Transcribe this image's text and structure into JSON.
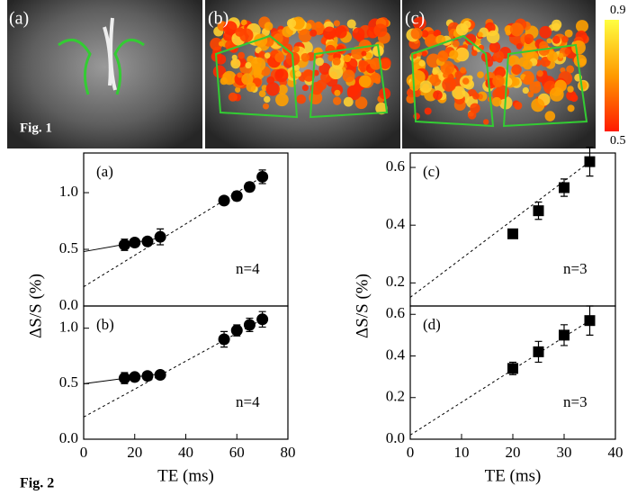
{
  "figure1": {
    "panels": [
      "(a)",
      "(b)",
      "(c)"
    ],
    "caption": "Fig. 1",
    "colorbar_labels": [
      "0.9",
      "0.5"
    ]
  },
  "figure2": {
    "caption": "Fig. 2"
  },
  "chart_data": [
    {
      "type": "scatter",
      "panel_label": "(a)",
      "annotation": "n=4",
      "y_label": "ΔS/S (%)",
      "x": [
        16,
        20,
        25,
        30,
        55,
        60,
        65,
        70
      ],
      "series": [
        {
          "color": "#000000",
          "marker": "circle",
          "values": [
            0.54,
            0.56,
            0.57,
            0.61,
            0.93,
            0.97,
            1.05,
            1.14
          ],
          "errors": [
            0.05,
            0.03,
            0.03,
            0.07,
            0.03,
            0.04,
            0.04,
            0.06
          ]
        }
      ],
      "fits": [
        {
          "style": "solid",
          "x": [
            0,
            30
          ],
          "values": [
            0.48,
            0.6
          ]
        },
        {
          "style": "dashed",
          "x": [
            0,
            70
          ],
          "values": [
            0.17,
            1.14
          ]
        }
      ],
      "xlim": [
        0,
        80
      ],
      "ylim": [
        0,
        1.35
      ],
      "yticks": [
        {
          "value": 0,
          "label": "0.0"
        },
        0.5,
        {
          "value": 1,
          "label": "1.0"
        }
      ]
    },
    {
      "type": "scatter",
      "panel_label": "(b)",
      "annotation": "n=4",
      "x_label": "TE (ms)",
      "x": [
        16,
        20,
        25,
        30,
        55,
        60,
        65,
        70
      ],
      "series": [
        {
          "color": "#000000",
          "marker": "circle",
          "values": [
            0.55,
            0.56,
            0.57,
            0.58,
            0.9,
            0.98,
            1.03,
            1.08
          ],
          "errors": [
            0.05,
            0.03,
            0.02,
            0.03,
            0.07,
            0.05,
            0.06,
            0.07
          ]
        }
      ],
      "fits": [
        {
          "style": "solid",
          "x": [
            0,
            30
          ],
          "values": [
            0.5,
            0.59
          ]
        },
        {
          "style": "dashed",
          "x": [
            0,
            70
          ],
          "values": [
            0.2,
            1.08
          ]
        }
      ],
      "xlim": [
        0,
        80
      ],
      "xticks": [
        0,
        20,
        40,
        60,
        80
      ],
      "ylim": [
        0,
        1.2
      ],
      "yticks": [
        {
          "value": 0,
          "label": "0.0"
        },
        0.5,
        {
          "value": 1,
          "label": "1.0"
        }
      ]
    },
    {
      "type": "scatter",
      "panel_label": "(c)",
      "annotation": "n=3",
      "y_label": "ΔS/S (%)",
      "x": [
        20,
        25,
        30,
        35
      ],
      "series": [
        {
          "color": "#000000",
          "marker": "square",
          "values": [
            0.37,
            0.45,
            0.53,
            0.62
          ],
          "errors": [
            0.01,
            0.03,
            0.03,
            0.05
          ]
        }
      ],
      "fits": [
        {
          "style": "dashed",
          "x": [
            0,
            35
          ],
          "values": [
            0.15,
            0.62
          ]
        }
      ],
      "xlim": [
        0,
        40
      ],
      "ylim": [
        0.12,
        0.65
      ],
      "yticks": [
        0.2,
        0.4,
        0.6
      ]
    },
    {
      "type": "scatter",
      "panel_label": "(d)",
      "annotation": "n=3",
      "x_label": "TE (ms)",
      "x": [
        20,
        25,
        30,
        35
      ],
      "series": [
        {
          "color": "#000000",
          "marker": "square",
          "values": [
            0.34,
            0.42,
            0.5,
            0.57
          ],
          "errors": [
            0.03,
            0.05,
            0.05,
            0.07
          ]
        }
      ],
      "fits": [
        {
          "style": "dashed",
          "x": [
            0,
            35
          ],
          "values": [
            0.02,
            0.57
          ]
        }
      ],
      "xlim": [
        0,
        40
      ],
      "xticks": [
        0,
        10,
        20,
        30,
        40
      ],
      "ylim": [
        0,
        0.64
      ],
      "yticks": [
        {
          "value": 0,
          "label": "0.0"
        },
        0.2,
        0.4,
        0.6
      ]
    }
  ]
}
